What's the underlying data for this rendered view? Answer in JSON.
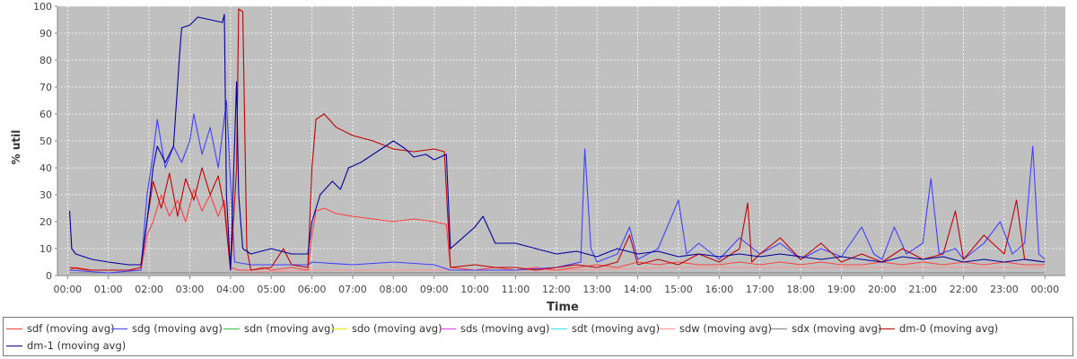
{
  "chart_data": {
    "type": "line",
    "title": "",
    "xlabel": "Time",
    "ylabel": "% util",
    "ylim": [
      0,
      100
    ],
    "yticks": [
      "0",
      "10",
      "20",
      "30",
      "40",
      "50",
      "60",
      "70",
      "80",
      "90",
      "100"
    ],
    "xticks": [
      "00:00",
      "01:00",
      "02:00",
      "03:00",
      "04:00",
      "05:00",
      "06:00",
      "07:00",
      "08:00",
      "09:00",
      "10:00",
      "11:00",
      "12:00",
      "13:00",
      "14:00",
      "15:00",
      "16:00",
      "17:00",
      "18:00",
      "19:00",
      "20:00",
      "21:00",
      "22:00",
      "23:00",
      "00:00"
    ],
    "xlim_hours": [
      -0.25,
      24.5
    ],
    "background": "#c0c0c0",
    "grid": true,
    "legend_position": "bottom",
    "series": [
      {
        "name": "sdf (moving avg)",
        "color": "#ff4040",
        "points": [
          [
            0.05,
            2
          ],
          [
            0.2,
            3
          ],
          [
            0.6,
            2
          ],
          [
            1.0,
            2
          ],
          [
            1.5,
            2
          ],
          [
            1.8,
            2
          ],
          [
            1.95,
            15
          ],
          [
            2.1,
            20
          ],
          [
            2.3,
            30
          ],
          [
            2.5,
            22
          ],
          [
            2.7,
            28
          ],
          [
            2.9,
            20
          ],
          [
            3.1,
            32
          ],
          [
            3.3,
            24
          ],
          [
            3.5,
            30
          ],
          [
            3.7,
            22
          ],
          [
            3.85,
            28
          ],
          [
            4.0,
            3
          ],
          [
            4.2,
            2
          ],
          [
            4.5,
            2
          ],
          [
            4.8,
            3
          ],
          [
            5.0,
            2
          ],
          [
            5.5,
            3
          ],
          [
            5.9,
            2
          ],
          [
            6.0,
            15
          ],
          [
            6.1,
            24
          ],
          [
            6.3,
            25
          ],
          [
            6.6,
            23
          ],
          [
            7.0,
            22
          ],
          [
            7.5,
            21
          ],
          [
            8.0,
            20
          ],
          [
            8.5,
            21
          ],
          [
            9.0,
            20
          ],
          [
            9.3,
            19
          ],
          [
            9.4,
            3
          ],
          [
            10.0,
            2
          ],
          [
            10.5,
            3
          ],
          [
            11.0,
            2
          ],
          [
            11.5,
            3
          ],
          [
            12.0,
            2
          ],
          [
            12.5,
            3
          ],
          [
            13.0,
            4
          ],
          [
            13.5,
            3
          ],
          [
            14.0,
            5
          ],
          [
            14.5,
            4
          ],
          [
            15.0,
            5
          ],
          [
            15.5,
            4
          ],
          [
            16.0,
            4
          ],
          [
            16.5,
            5
          ],
          [
            17.0,
            4
          ],
          [
            17.5,
            5
          ],
          [
            18.0,
            4
          ],
          [
            18.5,
            5
          ],
          [
            19.0,
            4
          ],
          [
            19.5,
            4
          ],
          [
            20.0,
            5
          ],
          [
            20.5,
            4
          ],
          [
            21.0,
            5
          ],
          [
            21.5,
            4
          ],
          [
            22.0,
            5
          ],
          [
            22.5,
            4
          ],
          [
            23.0,
            5
          ],
          [
            23.5,
            4
          ],
          [
            24.0,
            4
          ]
        ]
      },
      {
        "name": "sdg (moving avg)",
        "color": "#4040ff",
        "points": [
          [
            0.05,
            2
          ],
          [
            1.0,
            1
          ],
          [
            1.8,
            2
          ],
          [
            1.95,
            30
          ],
          [
            2.1,
            45
          ],
          [
            2.2,
            58
          ],
          [
            2.4,
            40
          ],
          [
            2.6,
            48
          ],
          [
            2.8,
            42
          ],
          [
            3.0,
            50
          ],
          [
            3.1,
            60
          ],
          [
            3.3,
            45
          ],
          [
            3.5,
            55
          ],
          [
            3.7,
            40
          ],
          [
            3.9,
            65
          ],
          [
            4.05,
            20
          ],
          [
            4.1,
            5
          ],
          [
            4.5,
            4
          ],
          [
            5.0,
            4
          ],
          [
            5.9,
            4
          ],
          [
            6.0,
            5
          ],
          [
            7.0,
            4
          ],
          [
            8.0,
            5
          ],
          [
            9.0,
            4
          ],
          [
            9.4,
            2
          ],
          [
            10.0,
            2
          ],
          [
            11.0,
            2
          ],
          [
            12.0,
            3
          ],
          [
            12.6,
            5
          ],
          [
            12.7,
            47
          ],
          [
            12.85,
            10
          ],
          [
            13.0,
            5
          ],
          [
            13.5,
            8
          ],
          [
            13.8,
            18
          ],
          [
            14.0,
            6
          ],
          [
            14.5,
            10
          ],
          [
            15.0,
            28
          ],
          [
            15.2,
            8
          ],
          [
            15.5,
            12
          ],
          [
            16.0,
            6
          ],
          [
            16.5,
            14
          ],
          [
            17.0,
            8
          ],
          [
            17.5,
            12
          ],
          [
            18.0,
            6
          ],
          [
            18.5,
            10
          ],
          [
            19.0,
            7
          ],
          [
            19.5,
            18
          ],
          [
            19.8,
            8
          ],
          [
            20.0,
            6
          ],
          [
            20.3,
            18
          ],
          [
            20.6,
            8
          ],
          [
            21.0,
            12
          ],
          [
            21.2,
            36
          ],
          [
            21.4,
            8
          ],
          [
            21.8,
            10
          ],
          [
            22.0,
            6
          ],
          [
            22.5,
            12
          ],
          [
            22.9,
            20
          ],
          [
            23.2,
            8
          ],
          [
            23.5,
            12
          ],
          [
            23.7,
            48
          ],
          [
            23.85,
            8
          ],
          [
            24.0,
            6
          ]
        ]
      },
      {
        "name": "sdn (moving avg)",
        "color": "#40c040",
        "points": []
      },
      {
        "name": "sdo (moving avg)",
        "color": "#e8e800",
        "points": []
      },
      {
        "name": "sds (moving avg)",
        "color": "#e040e0",
        "points": []
      },
      {
        "name": "sdt (moving avg)",
        "color": "#40e0e0",
        "points": []
      },
      {
        "name": "sdw (moving avg)",
        "color": "#ff9090",
        "points": [
          [
            0.05,
            1
          ],
          [
            2.0,
            1
          ],
          [
            4.0,
            1
          ],
          [
            6.0,
            2
          ],
          [
            9.0,
            2
          ],
          [
            12.0,
            2
          ],
          [
            15.0,
            3
          ],
          [
            18.0,
            3
          ],
          [
            21.0,
            3
          ],
          [
            24.0,
            3
          ]
        ]
      },
      {
        "name": "sdx (moving avg)",
        "color": "#808080",
        "points": [
          [
            0.05,
            1
          ],
          [
            6.0,
            1
          ],
          [
            12.0,
            1
          ],
          [
            18.0,
            1
          ],
          [
            24.0,
            1
          ]
        ]
      },
      {
        "name": "dm-0 (moving avg)",
        "color": "#c00000",
        "points": [
          [
            0.05,
            3
          ],
          [
            0.5,
            2
          ],
          [
            1.0,
            2
          ],
          [
            1.5,
            2
          ],
          [
            1.8,
            3
          ],
          [
            1.95,
            20
          ],
          [
            2.1,
            35
          ],
          [
            2.3,
            25
          ],
          [
            2.5,
            38
          ],
          [
            2.7,
            22
          ],
          [
            2.9,
            36
          ],
          [
            3.1,
            28
          ],
          [
            3.3,
            40
          ],
          [
            3.5,
            30
          ],
          [
            3.7,
            37
          ],
          [
            3.85,
            25
          ],
          [
            4.0,
            2
          ],
          [
            4.15,
            40
          ],
          [
            4.2,
            99
          ],
          [
            4.3,
            98
          ],
          [
            4.4,
            10
          ],
          [
            4.5,
            2
          ],
          [
            5.0,
            3
          ],
          [
            5.3,
            10
          ],
          [
            5.5,
            4
          ],
          [
            5.9,
            3
          ],
          [
            6.0,
            40
          ],
          [
            6.1,
            58
          ],
          [
            6.3,
            60
          ],
          [
            6.6,
            55
          ],
          [
            7.0,
            52
          ],
          [
            7.5,
            50
          ],
          [
            8.0,
            47
          ],
          [
            8.5,
            46
          ],
          [
            9.0,
            47
          ],
          [
            9.25,
            46
          ],
          [
            9.4,
            3
          ],
          [
            10.0,
            4
          ],
          [
            10.5,
            3
          ],
          [
            11.0,
            3
          ],
          [
            11.5,
            2
          ],
          [
            12.0,
            3
          ],
          [
            12.5,
            4
          ],
          [
            13.0,
            3
          ],
          [
            13.5,
            5
          ],
          [
            13.8,
            15
          ],
          [
            14.0,
            4
          ],
          [
            14.5,
            6
          ],
          [
            15.0,
            4
          ],
          [
            15.5,
            8
          ],
          [
            16.0,
            5
          ],
          [
            16.5,
            10
          ],
          [
            16.7,
            27
          ],
          [
            16.8,
            5
          ],
          [
            17.0,
            8
          ],
          [
            17.5,
            14
          ],
          [
            18.0,
            6
          ],
          [
            18.5,
            12
          ],
          [
            19.0,
            5
          ],
          [
            19.5,
            8
          ],
          [
            20.0,
            5
          ],
          [
            20.5,
            10
          ],
          [
            21.0,
            6
          ],
          [
            21.5,
            8
          ],
          [
            21.8,
            24
          ],
          [
            22.0,
            6
          ],
          [
            22.5,
            15
          ],
          [
            23.0,
            8
          ],
          [
            23.3,
            28
          ],
          [
            23.5,
            6
          ],
          [
            24.0,
            5
          ]
        ]
      },
      {
        "name": "dm-1 (moving avg)",
        "color": "#0000a0",
        "points": [
          [
            0.05,
            24
          ],
          [
            0.1,
            10
          ],
          [
            0.2,
            8
          ],
          [
            0.6,
            6
          ],
          [
            1.0,
            5
          ],
          [
            1.5,
            4
          ],
          [
            1.8,
            4
          ],
          [
            1.95,
            20
          ],
          [
            2.1,
            40
          ],
          [
            2.2,
            48
          ],
          [
            2.4,
            42
          ],
          [
            2.6,
            48
          ],
          [
            2.75,
            82
          ],
          [
            2.8,
            92
          ],
          [
            3.0,
            93
          ],
          [
            3.2,
            96
          ],
          [
            3.5,
            95
          ],
          [
            3.8,
            94
          ],
          [
            3.85,
            97
          ],
          [
            3.9,
            30
          ],
          [
            4.0,
            2
          ],
          [
            4.15,
            72
          ],
          [
            4.2,
            30
          ],
          [
            4.3,
            10
          ],
          [
            4.5,
            8
          ],
          [
            5.0,
            10
          ],
          [
            5.5,
            8
          ],
          [
            5.9,
            8
          ],
          [
            6.0,
            20
          ],
          [
            6.2,
            30
          ],
          [
            6.5,
            35
          ],
          [
            6.7,
            32
          ],
          [
            6.9,
            40
          ],
          [
            7.2,
            42
          ],
          [
            7.5,
            45
          ],
          [
            7.8,
            48
          ],
          [
            8.0,
            50
          ],
          [
            8.3,
            47
          ],
          [
            8.5,
            44
          ],
          [
            8.8,
            45
          ],
          [
            9.0,
            43
          ],
          [
            9.3,
            45
          ],
          [
            9.4,
            10
          ],
          [
            10.0,
            18
          ],
          [
            10.2,
            22
          ],
          [
            10.5,
            12
          ],
          [
            11.0,
            12
          ],
          [
            11.5,
            10
          ],
          [
            12.0,
            8
          ],
          [
            12.5,
            9
          ],
          [
            13.0,
            7
          ],
          [
            13.5,
            10
          ],
          [
            14.0,
            8
          ],
          [
            14.5,
            9
          ],
          [
            15.0,
            7
          ],
          [
            15.5,
            8
          ],
          [
            16.0,
            7
          ],
          [
            16.5,
            8
          ],
          [
            17.0,
            7
          ],
          [
            17.5,
            8
          ],
          [
            18.0,
            7
          ],
          [
            18.5,
            6
          ],
          [
            19.0,
            7
          ],
          [
            19.5,
            6
          ],
          [
            20.0,
            5
          ],
          [
            20.5,
            7
          ],
          [
            21.0,
            6
          ],
          [
            21.5,
            7
          ],
          [
            22.0,
            5
          ],
          [
            22.5,
            6
          ],
          [
            23.0,
            5
          ],
          [
            23.5,
            6
          ],
          [
            24.0,
            5
          ]
        ]
      }
    ]
  }
}
